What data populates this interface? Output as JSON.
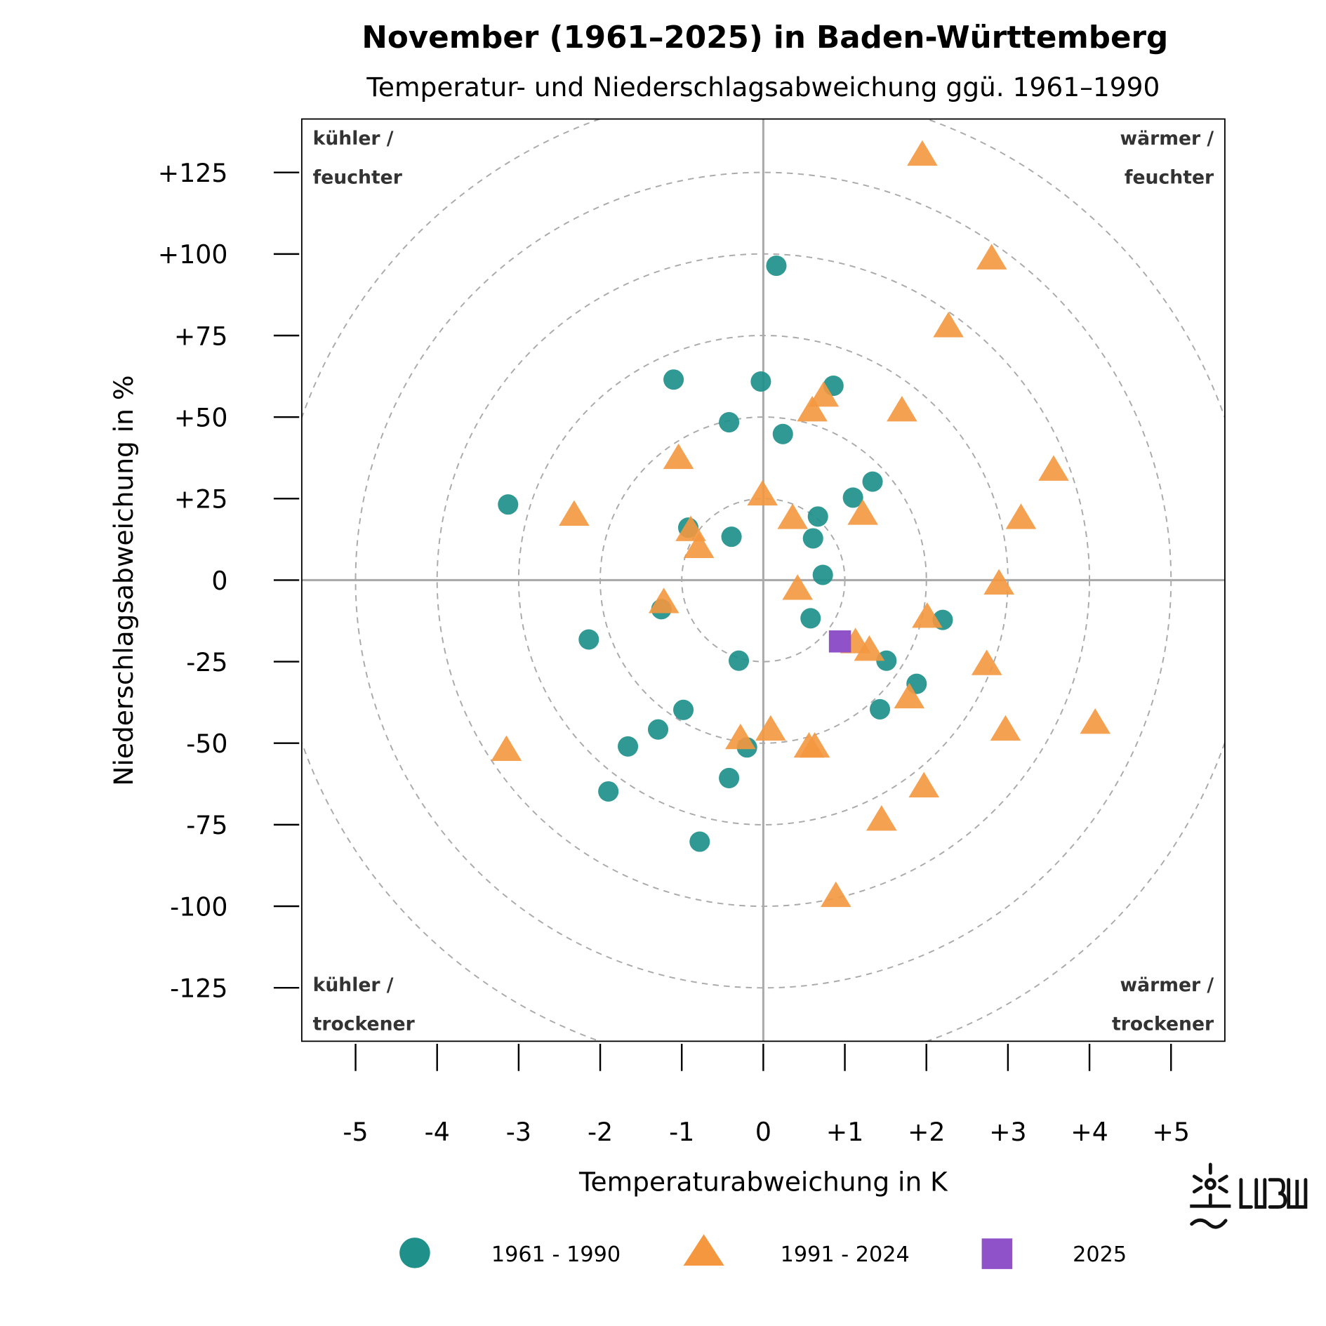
{
  "chart_data": {
    "type": "scatter",
    "title": "November (1961–2025) in Baden-Württemberg",
    "subtitle": "Temperatur- und Niederschlagsabweichung ggü. 1961–1990",
    "xlabel": "Temperaturabweichung in K",
    "ylabel": "Niederschlagsabweichung in %",
    "xlim": [
      -5.66,
      5.66
    ],
    "ylim": [
      -141.4,
      141.4
    ],
    "x_ticks": [
      -5,
      -4,
      -3,
      -2,
      -1,
      0,
      1,
      2,
      3,
      4,
      5
    ],
    "x_tick_labels": [
      "-5",
      "-4",
      "-3",
      "-2",
      "-1",
      "0",
      "+1",
      "+2",
      "+3",
      "+4",
      "+5"
    ],
    "y_ticks": [
      125,
      100,
      75,
      50,
      25,
      0,
      -25,
      -50,
      -75,
      -100,
      -125
    ],
    "y_tick_labels": [
      "+125",
      "+100",
      "+75",
      "+50",
      "+25",
      "0",
      "-25",
      "-50",
      "-75",
      "-100",
      "-125"
    ],
    "reference_circles_radius_x_units": [
      1,
      2,
      3,
      4,
      5,
      6
    ],
    "zero_lines": true,
    "quadrant_labels": {
      "top_left": [
        "kühler /",
        "feuchter"
      ],
      "top_right": [
        "wärmer /",
        "feuchter"
      ],
      "bottom_left": [
        "kühler /",
        "trockener"
      ],
      "bottom_right": [
        "wärmer /",
        "trockener"
      ]
    },
    "legend_position": "bottom",
    "series": [
      {
        "name": "1961 - 1990",
        "marker": "circle",
        "color": "#20908a",
        "points": [
          [
            0.16,
            96.4
          ],
          [
            -1.1,
            61.5
          ],
          [
            -0.03,
            60.9
          ],
          [
            0.86,
            59.6
          ],
          [
            -0.42,
            48.4
          ],
          [
            0.24,
            44.8
          ],
          [
            -3.13,
            23.2
          ],
          [
            1.34,
            30.2
          ],
          [
            1.1,
            25.3
          ],
          [
            0.67,
            19.5
          ],
          [
            -0.92,
            16.1
          ],
          [
            -0.39,
            13.3
          ],
          [
            0.61,
            12.8
          ],
          [
            0.73,
            1.6
          ],
          [
            -1.25,
            -8.9
          ],
          [
            0.58,
            -11.7
          ],
          [
            2.2,
            -12.2
          ],
          [
            -2.14,
            -18.2
          ],
          [
            -0.3,
            -24.7
          ],
          [
            1.51,
            -24.7
          ],
          [
            1.88,
            -31.8
          ],
          [
            1.43,
            -39.6
          ],
          [
            -0.98,
            -39.8
          ],
          [
            -1.29,
            -45.8
          ],
          [
            -1.66,
            -51.0
          ],
          [
            -0.2,
            -51.3
          ],
          [
            -0.42,
            -60.7
          ],
          [
            -1.9,
            -64.8
          ],
          [
            -0.78,
            -80.2
          ]
        ]
      },
      {
        "name": "1991 - 2024",
        "marker": "triangle",
        "color": "#f4973f",
        "points": [
          [
            1.95,
            130.2
          ],
          [
            2.8,
            98.4
          ],
          [
            2.27,
            77.6
          ],
          [
            1.7,
            51.8
          ],
          [
            0.74,
            56.3
          ],
          [
            0.6,
            51.8
          ],
          [
            -1.04,
            37.2
          ],
          [
            3.56,
            33.6
          ],
          [
            -0.01,
            26.0
          ],
          [
            -2.32,
            19.8
          ],
          [
            0.36,
            18.8
          ],
          [
            1.22,
            20.1
          ],
          [
            3.16,
            18.8
          ],
          [
            -0.89,
            15.1
          ],
          [
            -0.79,
            9.9
          ],
          [
            -1.22,
            -7.0
          ],
          [
            0.42,
            -2.9
          ],
          [
            2.89,
            -1.3
          ],
          [
            2.01,
            -11.5
          ],
          [
            1.13,
            -19.3
          ],
          [
            1.3,
            -21.6
          ],
          [
            2.74,
            -26.0
          ],
          [
            1.79,
            -36.2
          ],
          [
            2.97,
            -46.1
          ],
          [
            4.07,
            -44.0
          ],
          [
            -0.28,
            -48.7
          ],
          [
            0.09,
            -46.1
          ],
          [
            0.63,
            -51.3
          ],
          [
            0.56,
            -51.3
          ],
          [
            -3.15,
            -52.3
          ],
          [
            1.97,
            -63.5
          ],
          [
            1.45,
            -73.7
          ],
          [
            0.89,
            -97.1
          ]
        ]
      },
      {
        "name": "2025",
        "marker": "square",
        "color": "#8f52c9",
        "points": [
          [
            0.94,
            -18.8
          ]
        ]
      }
    ]
  },
  "logo": {
    "text": "LUBW"
  }
}
